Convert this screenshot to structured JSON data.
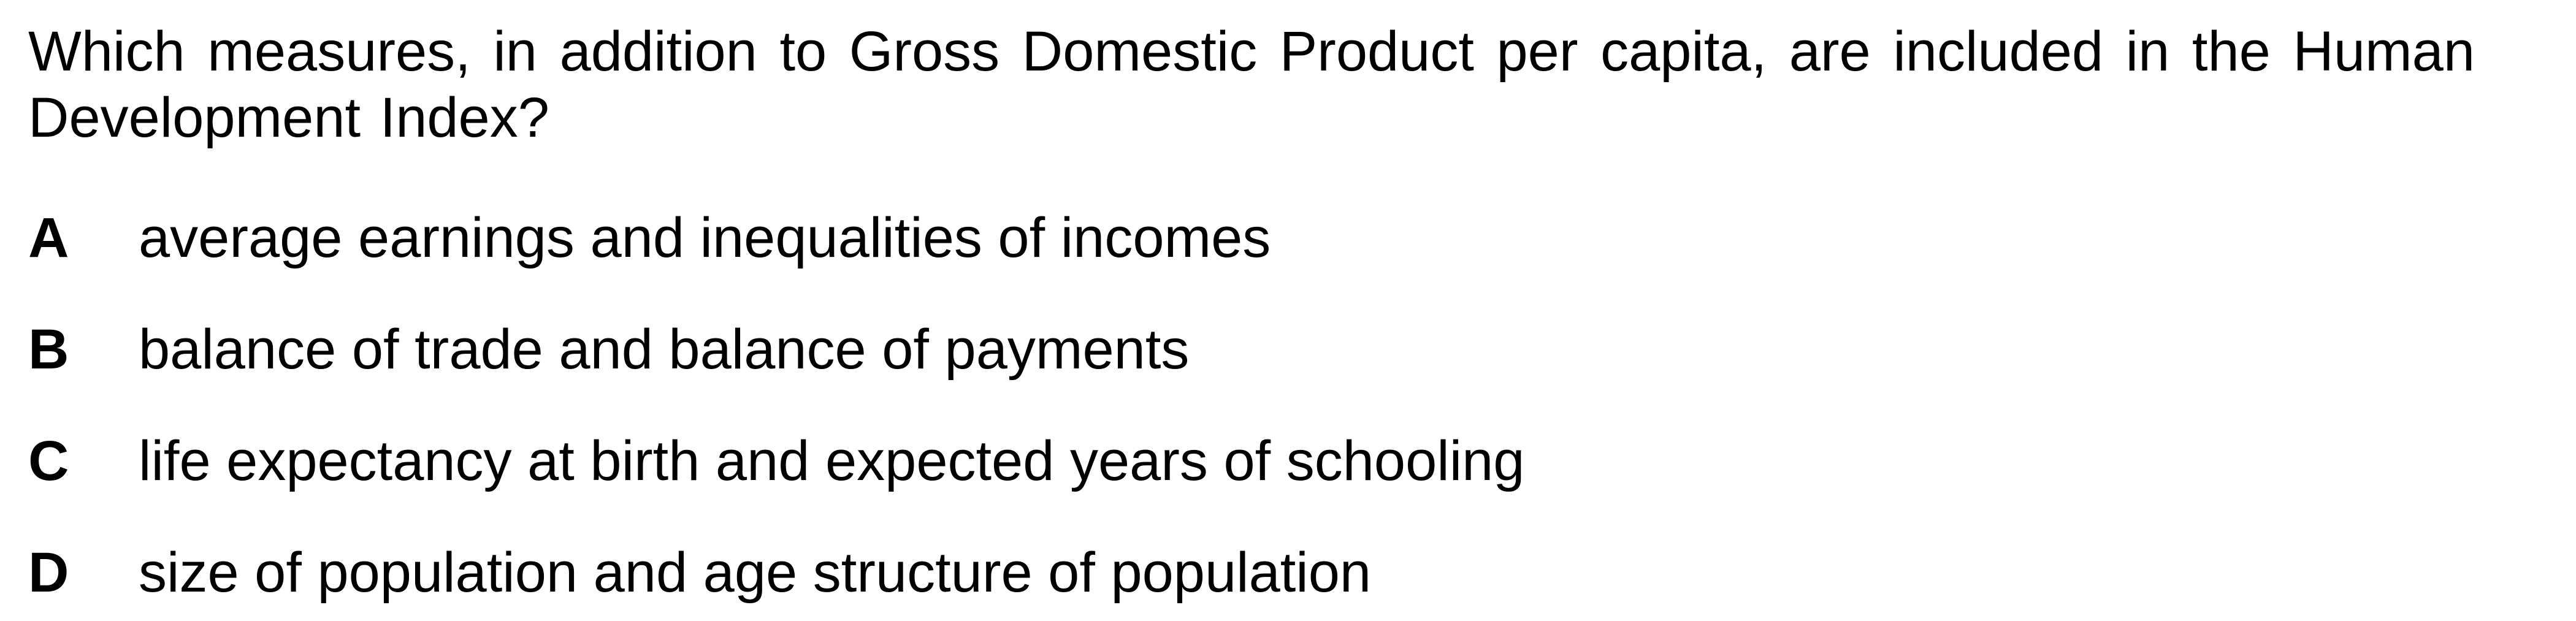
{
  "question": {
    "text": "Which measures, in addition to Gross Domestic Product per capita, are included in the Human Development Index?"
  },
  "options": [
    {
      "letter": "A",
      "text": "average earnings and inequalities of incomes"
    },
    {
      "letter": "B",
      "text": "balance of trade and balance of payments"
    },
    {
      "letter": "C",
      "text": "life expectancy at birth and expected years of schooling"
    },
    {
      "letter": "D",
      "text": "size of population and age structure of population"
    }
  ]
}
